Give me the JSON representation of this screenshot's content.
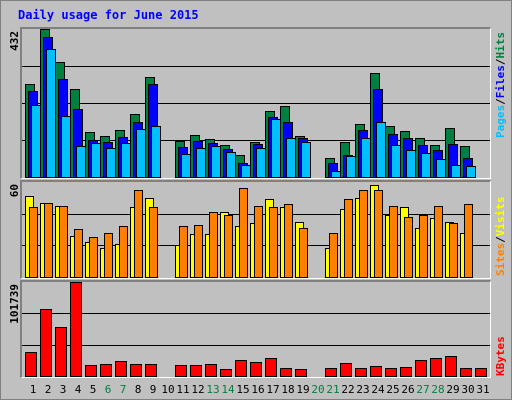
{
  "title": "Daily usage for June 2015",
  "colors": {
    "hits": "#008040",
    "files": "#0000ff",
    "pages": "#00c0ff",
    "visits": "#ffff00",
    "sites": "#ff8000",
    "kbytes": "#ff0000",
    "weekend_label": "#008040",
    "weekday_label": "#000000"
  },
  "chart_data": [
    {
      "type": "bar",
      "name_panel": "requests",
      "ymax_label": "432",
      "ylim": [
        0,
        432
      ],
      "legend": {
        "pages": "Pages",
        "sep1": "/",
        "files": "Files",
        "sep2": "/",
        "hits": "Hits"
      },
      "x": [
        1,
        2,
        3,
        4,
        5,
        6,
        7,
        8,
        9,
        10,
        11,
        12,
        13,
        14,
        15,
        16,
        17,
        18,
        19,
        20,
        21,
        22,
        23,
        24,
        25,
        26,
        27,
        28,
        29,
        30,
        31
      ],
      "series": [
        {
          "key": "hits",
          "values": [
            272,
            432,
            335,
            258,
            130,
            120,
            137,
            183,
            292,
            null,
            105,
            122,
            112,
            93,
            64,
            103,
            192,
            208,
            120,
            null,
            55,
            102,
            156,
            305,
            148,
            135,
            113,
            92,
            143,
            90,
            null
          ]
        },
        {
          "key": "files",
          "values": [
            250,
            408,
            285,
            199,
            108,
            103,
            116,
            160,
            270,
            null,
            88,
            106,
            98,
            83,
            40,
            96,
            176,
            161,
            113,
            null,
            40,
            64,
            138,
            256,
            126,
            113,
            92,
            78,
            95,
            56,
            null
          ]
        },
        {
          "key": "pages",
          "values": [
            210,
            375,
            178,
            90,
            100,
            85,
            100,
            140,
            148,
            null,
            68,
            85,
            90,
            72,
            35,
            85,
            170,
            115,
            103,
            null,
            18,
            60,
            115,
            160,
            92,
            80,
            70,
            52,
            35,
            32,
            null
          ]
        }
      ]
    },
    {
      "type": "bar",
      "name_panel": "visits",
      "ymax_label": "60",
      "ylim": [
        0,
        60
      ],
      "legend": {
        "sites": "Sites",
        "sep": "/",
        "visits": "Visits"
      },
      "x": [
        1,
        2,
        3,
        4,
        5,
        6,
        7,
        8,
        9,
        10,
        11,
        12,
        13,
        14,
        15,
        16,
        17,
        18,
        19,
        20,
        21,
        22,
        23,
        24,
        25,
        26,
        27,
        28,
        29,
        30,
        31
      ],
      "series": [
        {
          "key": "visits",
          "values": [
            51,
            47,
            45,
            26,
            22,
            18,
            21,
            44,
            50,
            null,
            20,
            27,
            27,
            41,
            32,
            34,
            49,
            44,
            35,
            null,
            18,
            43,
            50,
            58,
            39,
            44,
            31,
            37,
            35,
            28,
            null
          ]
        },
        {
          "key": "sites",
          "values": [
            44,
            47,
            45,
            30,
            25,
            28,
            32,
            55,
            44,
            null,
            32,
            33,
            41,
            39,
            56,
            45,
            44,
            46,
            31,
            null,
            28,
            49,
            55,
            55,
            45,
            38,
            39,
            45,
            34,
            46,
            null
          ]
        }
      ]
    },
    {
      "type": "bar",
      "name_panel": "kbytes",
      "ymax_label": "101739",
      "ylim": [
        0,
        101739
      ],
      "legend": {
        "kbytes": "KBytes"
      },
      "x": [
        1,
        2,
        3,
        4,
        5,
        6,
        7,
        8,
        9,
        10,
        11,
        12,
        13,
        14,
        15,
        16,
        17,
        18,
        19,
        20,
        21,
        22,
        23,
        24,
        25,
        26,
        27,
        28,
        29,
        30,
        31
      ],
      "series": [
        {
          "key": "kbytes",
          "values": [
            26000,
            72000,
            53000,
            101739,
            12000,
            13000,
            16000,
            13000,
            13000,
            null,
            12000,
            12000,
            13000,
            8000,
            17000,
            15000,
            20000,
            9000,
            8000,
            null,
            9000,
            14000,
            9000,
            11000,
            9000,
            10000,
            17000,
            20000,
            22000,
            9000,
            9000
          ]
        }
      ]
    }
  ],
  "x_labels": {
    "values": [
      "1",
      "2",
      "3",
      "4",
      "5",
      "6",
      "7",
      "8",
      "9",
      "10",
      "11",
      "12",
      "13",
      "14",
      "15",
      "16",
      "17",
      "18",
      "19",
      "20",
      "21",
      "22",
      "23",
      "24",
      "25",
      "26",
      "27",
      "28",
      "29",
      "30",
      "31"
    ],
    "weekend": [
      6,
      7,
      13,
      14,
      20,
      21,
      27,
      28
    ]
  }
}
